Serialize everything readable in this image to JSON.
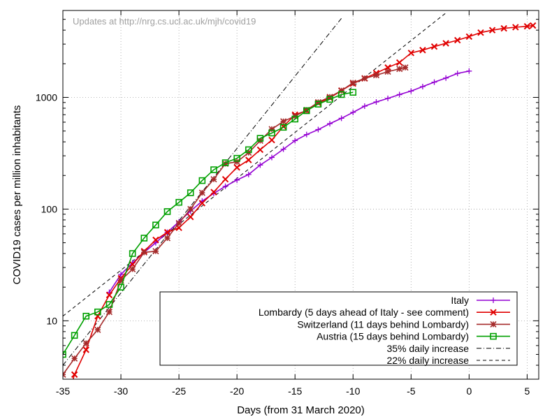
{
  "chart_data": {
    "type": "line",
    "title": "",
    "annotation": "Updates at http://nrg.cs.ucl.ac.uk/mjh/covid19",
    "xlabel": "Days (from 31 March 2020)",
    "ylabel": "COVID19 cases per million inhabitants",
    "xlim": [
      -35,
      6
    ],
    "ylim": [
      3,
      6000
    ],
    "yscale": "log",
    "grid": true,
    "legend_position": "bottom-right",
    "x_ticks": [
      -35,
      -30,
      -25,
      -20,
      -15,
      -10,
      -5,
      0,
      5
    ],
    "x_tick_labels": [
      "-35",
      "-30",
      "-25",
      "-20",
      "-15",
      "-10",
      "-5",
      "0",
      "5"
    ],
    "y_ticks": [
      10,
      100,
      1000
    ],
    "y_tick_labels": [
      "10",
      "100",
      "1000"
    ],
    "series": [
      {
        "name": "Italy",
        "color": "#9400d3",
        "marker": "plus",
        "x": [
          -31,
          -30,
          -29,
          -28,
          -27,
          -26,
          -25,
          -24,
          -23,
          -22,
          -21,
          -20,
          -19,
          -18,
          -17,
          -16,
          -15,
          -14,
          -13,
          -12,
          -11,
          -10,
          -9,
          -8,
          -7,
          -6,
          -5,
          -4,
          -3,
          -2,
          -1,
          0
        ],
        "y": [
          18,
          26,
          33,
          41,
          50,
          62,
          77,
          96,
          118,
          138,
          160,
          182,
          204,
          248,
          290,
          344,
          410,
          465,
          515,
          582,
          650,
          735,
          835,
          910,
          980,
          1060,
          1140,
          1250,
          1370,
          1490,
          1640,
          1720
        ]
      },
      {
        "name": "Lombardy (5 days ahead of Italy - see comment)",
        "color": "#e00000",
        "marker": "cross",
        "x": [
          -35,
          -34,
          -33,
          -32,
          -31,
          -30,
          -29,
          -28,
          -27,
          -26,
          -25,
          -24,
          -23,
          -22,
          -21,
          -20,
          -19,
          -18,
          -17,
          -16,
          -15,
          -14,
          -13,
          -12,
          -11,
          -10,
          -9,
          -8,
          -7,
          -6,
          -5,
          -4,
          -3,
          -2,
          -1,
          0,
          1,
          2,
          3,
          4,
          5,
          5.5
        ],
        "y": [
          1.5,
          3.3,
          5.5,
          11,
          17,
          24,
          32,
          42,
          53,
          62,
          68,
          85,
          113,
          142,
          185,
          236,
          275,
          340,
          415,
          550,
          700,
          760,
          890,
          990,
          1150,
          1330,
          1480,
          1650,
          1850,
          2050,
          2500,
          2650,
          2850,
          3050,
          3250,
          3500,
          3800,
          4000,
          4150,
          4250,
          4330,
          4400
        ]
      },
      {
        "name": "Switzerland (11 days behind Lombardy)",
        "color": "#a52a2a",
        "marker": "star",
        "x": [
          -35,
          -34,
          -33,
          -32,
          -31,
          -30,
          -29,
          -28,
          -27,
          -26,
          -25,
          -24,
          -23,
          -22,
          -21,
          -20,
          -19,
          -18,
          -17,
          -16,
          -15,
          -14,
          -13,
          -12,
          -11,
          -10,
          -9,
          -8,
          -7,
          -6,
          -5.5
        ],
        "y": [
          3.3,
          4.6,
          6.3,
          8.3,
          12,
          23,
          29,
          41,
          42,
          55,
          75,
          100,
          140,
          185,
          255,
          265,
          320,
          410,
          520,
          610,
          680,
          770,
          905,
          1010,
          1150,
          1350,
          1480,
          1580,
          1700,
          1800,
          1850
        ]
      },
      {
        "name": "Austria (15 days behind Lombardy)",
        "color": "#00a000",
        "marker": "box",
        "x": [
          -35,
          -34,
          -33,
          -32,
          -31,
          -30,
          -29,
          -28,
          -27,
          -26,
          -25,
          -24,
          -23,
          -22,
          -21,
          -20,
          -19,
          -18,
          -17,
          -16,
          -15,
          -14,
          -13,
          -12,
          -11,
          -10
        ],
        "y": [
          5,
          7.4,
          11,
          12,
          14,
          20,
          40,
          55,
          72,
          95,
          115,
          140,
          180,
          225,
          260,
          285,
          340,
          430,
          480,
          540,
          640,
          760,
          870,
          960,
          1060,
          1110
        ]
      },
      {
        "name": "35% daily increase",
        "color": "#000000",
        "marker": "none",
        "dash": "dashdot",
        "x": [
          -35,
          -11
        ],
        "y": [
          4,
          5100
        ]
      },
      {
        "name": "22% daily increase",
        "color": "#000000",
        "marker": "none",
        "dash": "dash",
        "x": [
          -35,
          -2
        ],
        "y": [
          11,
          5700
        ]
      }
    ]
  }
}
